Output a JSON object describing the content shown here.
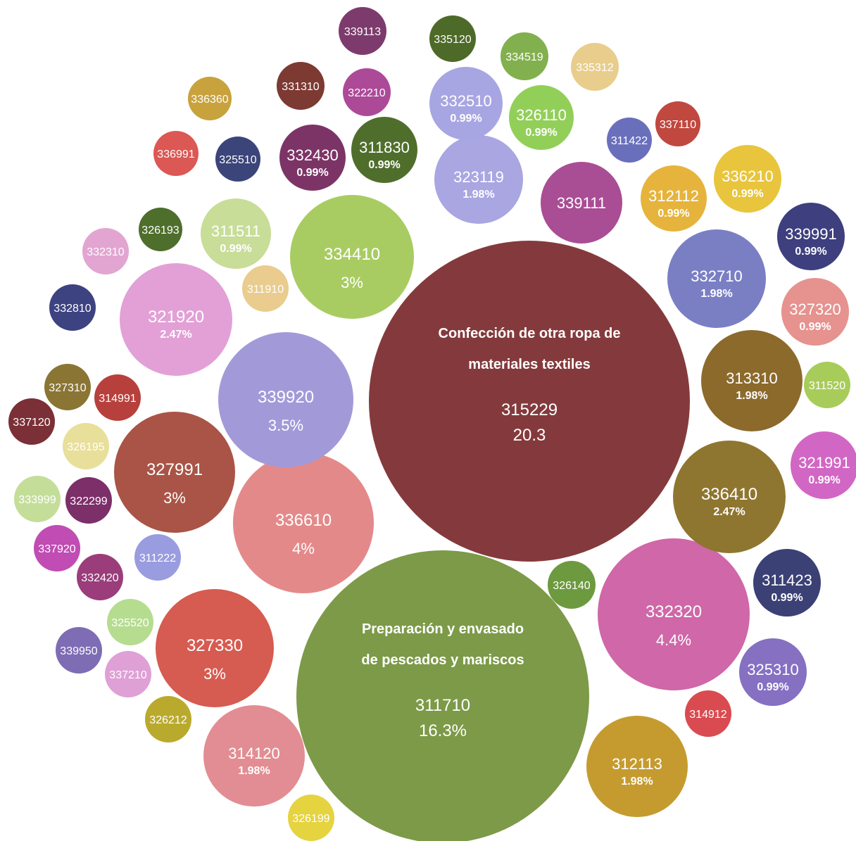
{
  "chart_data": {
    "type": "bubble",
    "title": "",
    "bubbles": [
      {
        "code": "315229",
        "pct": "20.3",
        "value": 20.3,
        "desc": [
          "Confección de otra ropa de",
          "materiales textiles"
        ],
        "color": "#843a3c"
      },
      {
        "code": "311710",
        "pct": "16.3%",
        "value": 16.3,
        "desc": [
          "Preparación y envasado",
          "de pescados y mariscos"
        ],
        "color": "#7c9a48"
      },
      {
        "code": "332320",
        "pct": "4.4%",
        "value": 4.4,
        "color": "#cf67a8"
      },
      {
        "code": "336610",
        "pct": "4%",
        "value": 4.0,
        "color": "#e4898a"
      },
      {
        "code": "339920",
        "pct": "3.5%",
        "value": 3.5,
        "color": "#a29ad8"
      },
      {
        "code": "334410",
        "pct": "3%",
        "value": 3.0,
        "color": "#a8cc62"
      },
      {
        "code": "327991",
        "pct": "3%",
        "value": 3.0,
        "color": "#a95446"
      },
      {
        "code": "327330",
        "pct": "3%",
        "value": 3.0,
        "color": "#d65b50"
      },
      {
        "code": "321920",
        "pct": "2.47%",
        "value": 2.47,
        "color": "#e2a0d6"
      },
      {
        "code": "336410",
        "pct": "2.47%",
        "value": 2.47,
        "color": "#8f7630"
      },
      {
        "code": "323119",
        "pct": "1.98%",
        "value": 1.98,
        "color": "#a9a6e2"
      },
      {
        "code": "332710",
        "pct": "1.98%",
        "value": 1.98,
        "color": "#7a7fc4"
      },
      {
        "code": "313310",
        "pct": "1.98%",
        "value": 1.98,
        "color": "#8c6a2c"
      },
      {
        "code": "312113",
        "pct": "1.98%",
        "value": 1.98,
        "color": "#c59b30"
      },
      {
        "code": "314120",
        "pct": "1.98%",
        "value": 1.98,
        "color": "#e28d93"
      },
      {
        "code": "339111",
        "pct": "",
        "value": 1.5,
        "color": "#a94d94"
      },
      {
        "code": "332510",
        "pct": "0.99%",
        "value": 0.99,
        "color": "#a8a5e3"
      },
      {
        "code": "326110",
        "pct": "0.99%",
        "value": 0.99,
        "color": "#92cf59"
      },
      {
        "code": "332430",
        "pct": "0.99%",
        "value": 0.99,
        "color": "#7c3466"
      },
      {
        "code": "311830",
        "pct": "0.99%",
        "value": 0.99,
        "color": "#4f6e2c"
      },
      {
        "code": "311511",
        "pct": "0.99%",
        "value": 0.99,
        "color": "#c8dd97"
      },
      {
        "code": "312112",
        "pct": "0.99%",
        "value": 0.99,
        "color": "#e6b43c"
      },
      {
        "code": "336210",
        "pct": "0.99%",
        "value": 0.99,
        "color": "#e8c53c"
      },
      {
        "code": "339991",
        "pct": "0.99%",
        "value": 0.99,
        "color": "#3e3f7e"
      },
      {
        "code": "327320",
        "pct": "0.99%",
        "value": 0.99,
        "color": "#e6928f"
      },
      {
        "code": "321991",
        "pct": "0.99%",
        "value": 0.99,
        "color": "#d266c4"
      },
      {
        "code": "311423",
        "pct": "0.99%",
        "value": 0.99,
        "color": "#3b4075"
      },
      {
        "code": "325310",
        "pct": "0.99%",
        "value": 0.99,
        "color": "#8570c2"
      },
      {
        "code": "339113",
        "pct": "",
        "value": 0.5,
        "color": "#7d3b6d"
      },
      {
        "code": "335120",
        "pct": "",
        "value": 0.5,
        "color": "#4e6a28"
      },
      {
        "code": "334519",
        "pct": "",
        "value": 0.5,
        "color": "#83b04e"
      },
      {
        "code": "335312",
        "pct": "",
        "value": 0.5,
        "color": "#e8cd8c"
      },
      {
        "code": "331310",
        "pct": "",
        "value": 0.5,
        "color": "#7c3a32"
      },
      {
        "code": "322210",
        "pct": "",
        "value": 0.5,
        "color": "#ad4a98"
      },
      {
        "code": "336360",
        "pct": "",
        "value": 0.5,
        "color": "#c8a23c"
      },
      {
        "code": "336991",
        "pct": "",
        "value": 0.5,
        "color": "#db5855"
      },
      {
        "code": "325510",
        "pct": "",
        "value": 0.5,
        "color": "#3b4579"
      },
      {
        "code": "311422",
        "pct": "",
        "value": 0.5,
        "color": "#6a6fbc"
      },
      {
        "code": "337110",
        "pct": "",
        "value": 0.5,
        "color": "#c0483f"
      },
      {
        "code": "326193",
        "pct": "",
        "value": 0.5,
        "color": "#4e6e2c"
      },
      {
        "code": "332310",
        "pct": "",
        "value": 0.5,
        "color": "#e2a5d2"
      },
      {
        "code": "311910",
        "pct": "",
        "value": 0.5,
        "color": "#e9cc8e"
      },
      {
        "code": "332810",
        "pct": "",
        "value": 0.5,
        "color": "#3d4280"
      },
      {
        "code": "311520",
        "pct": "",
        "value": 0.5,
        "color": "#a8cc5a"
      },
      {
        "code": "327310",
        "pct": "",
        "value": 0.5,
        "color": "#8a7534"
      },
      {
        "code": "314991",
        "pct": "",
        "value": 0.5,
        "color": "#b8403c"
      },
      {
        "code": "337120",
        "pct": "",
        "value": 0.5,
        "color": "#7a3036"
      },
      {
        "code": "326195",
        "pct": "",
        "value": 0.5,
        "color": "#e8df9a"
      },
      {
        "code": "333999",
        "pct": "",
        "value": 0.5,
        "color": "#c4de9a"
      },
      {
        "code": "322299",
        "pct": "",
        "value": 0.5,
        "color": "#7c2f69"
      },
      {
        "code": "337920",
        "pct": "",
        "value": 0.5,
        "color": "#c04cb4"
      },
      {
        "code": "311222",
        "pct": "",
        "value": 0.5,
        "color": "#9a9ce0"
      },
      {
        "code": "332420",
        "pct": "",
        "value": 0.5,
        "color": "#9a3d7a"
      },
      {
        "code": "326140",
        "pct": "",
        "value": 0.5,
        "color": "#6e9a3f"
      },
      {
        "code": "325520",
        "pct": "",
        "value": 0.5,
        "color": "#b6dc90"
      },
      {
        "code": "339950",
        "pct": "",
        "value": 0.5,
        "color": "#7e6cb4"
      },
      {
        "code": "337210",
        "pct": "",
        "value": 0.5,
        "color": "#dfa0d6"
      },
      {
        "code": "326212",
        "pct": "",
        "value": 0.5,
        "color": "#b9aa2e"
      },
      {
        "code": "314912",
        "pct": "",
        "value": 0.5,
        "color": "#d94b50"
      },
      {
        "code": "326199",
        "pct": "",
        "value": 0.5,
        "color": "#e5d340"
      }
    ]
  }
}
